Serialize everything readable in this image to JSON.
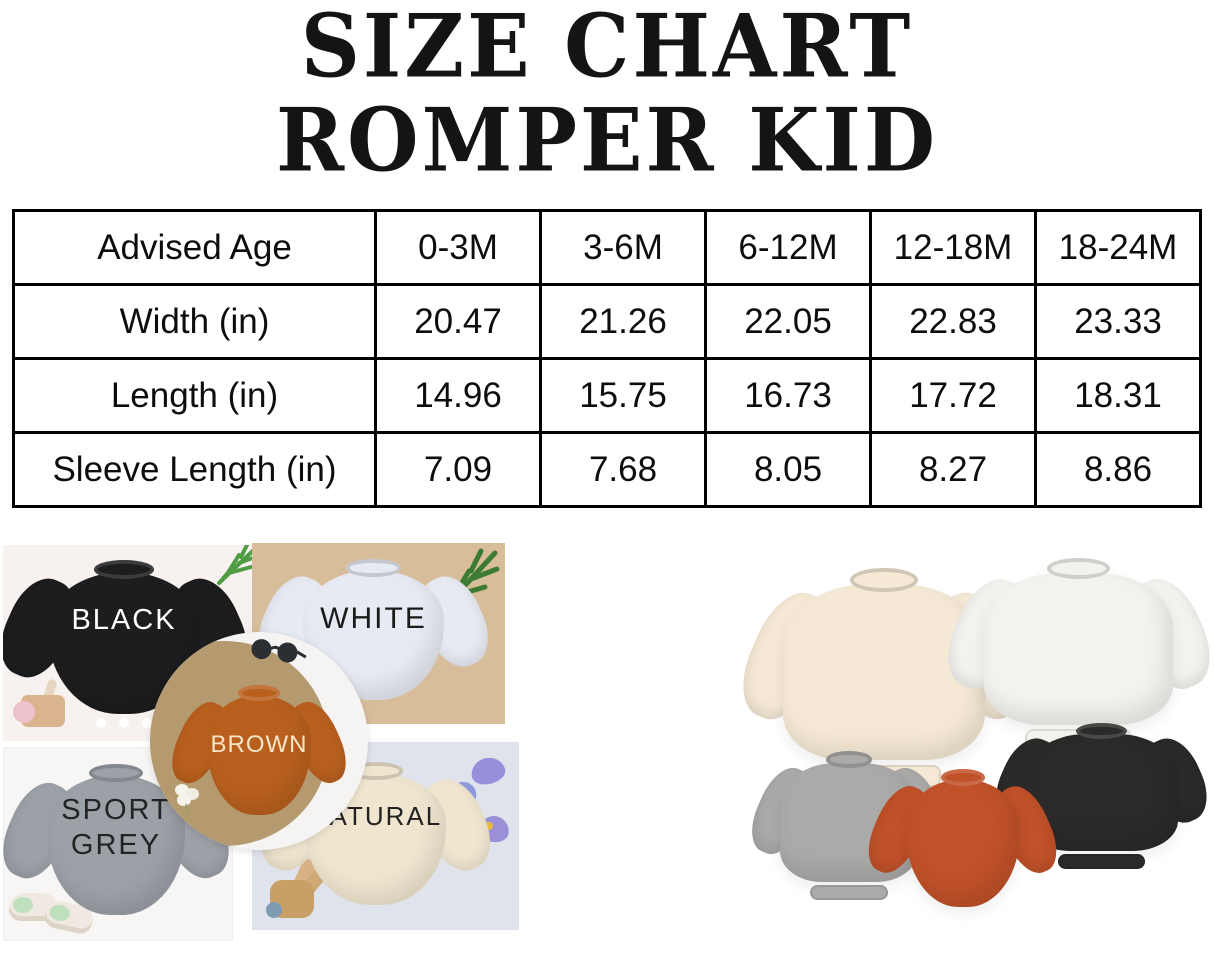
{
  "title": {
    "line1": "SIZE CHART",
    "line2": "ROMPER KID"
  },
  "size_table": {
    "rows": [
      {
        "label": "Advised Age",
        "values": [
          "0-3M",
          "3-6M",
          "6-12M",
          "12-18M",
          "18-24M"
        ]
      },
      {
        "label": "Width (in)",
        "values": [
          "20.47",
          "21.26",
          "22.05",
          "22.83",
          "23.33"
        ]
      },
      {
        "label": "Length (in)",
        "values": [
          "14.96",
          "15.75",
          "16.73",
          "17.72",
          "18.31"
        ]
      },
      {
        "label": "Sleeve Length (in)",
        "values": [
          "7.09",
          "7.68",
          "8.05",
          "8.27",
          "8.86"
        ]
      }
    ]
  },
  "collage_left": {
    "photos": [
      {
        "name": "black",
        "label": "BLACK",
        "garment_color": "#1d1d1f",
        "label_color": "#ffffff",
        "bg": "#f7f1f0"
      },
      {
        "name": "white",
        "label": "WHITE",
        "garment_color": "#e7eaf2",
        "label_color": "#1a1a1a",
        "bg": "#d8bd9b"
      },
      {
        "name": "brown",
        "label": "BROWN",
        "garment_color": "#b9601f",
        "label_color": "#f5e6c8",
        "bg_circle": "#b59a6f"
      },
      {
        "name": "sport-grey",
        "label": "SPORT GREY",
        "garment_color": "#9ca0a7",
        "label_color": "#232323",
        "bg": "#f7f6f5"
      },
      {
        "name": "natural",
        "label": "NATURAL",
        "garment_color": "#f0e6d0",
        "label_color": "#222222",
        "bg": "#dfe3ec"
      }
    ]
  },
  "collage_right": {
    "items": [
      {
        "name": "cream",
        "color": "#f5e9d5"
      },
      {
        "name": "white",
        "color": "#f3f2ee"
      },
      {
        "name": "black",
        "color": "#2b2a28"
      },
      {
        "name": "heather-grey",
        "color": "#abaaa8"
      },
      {
        "name": "orange",
        "color": "#c05129"
      }
    ]
  }
}
